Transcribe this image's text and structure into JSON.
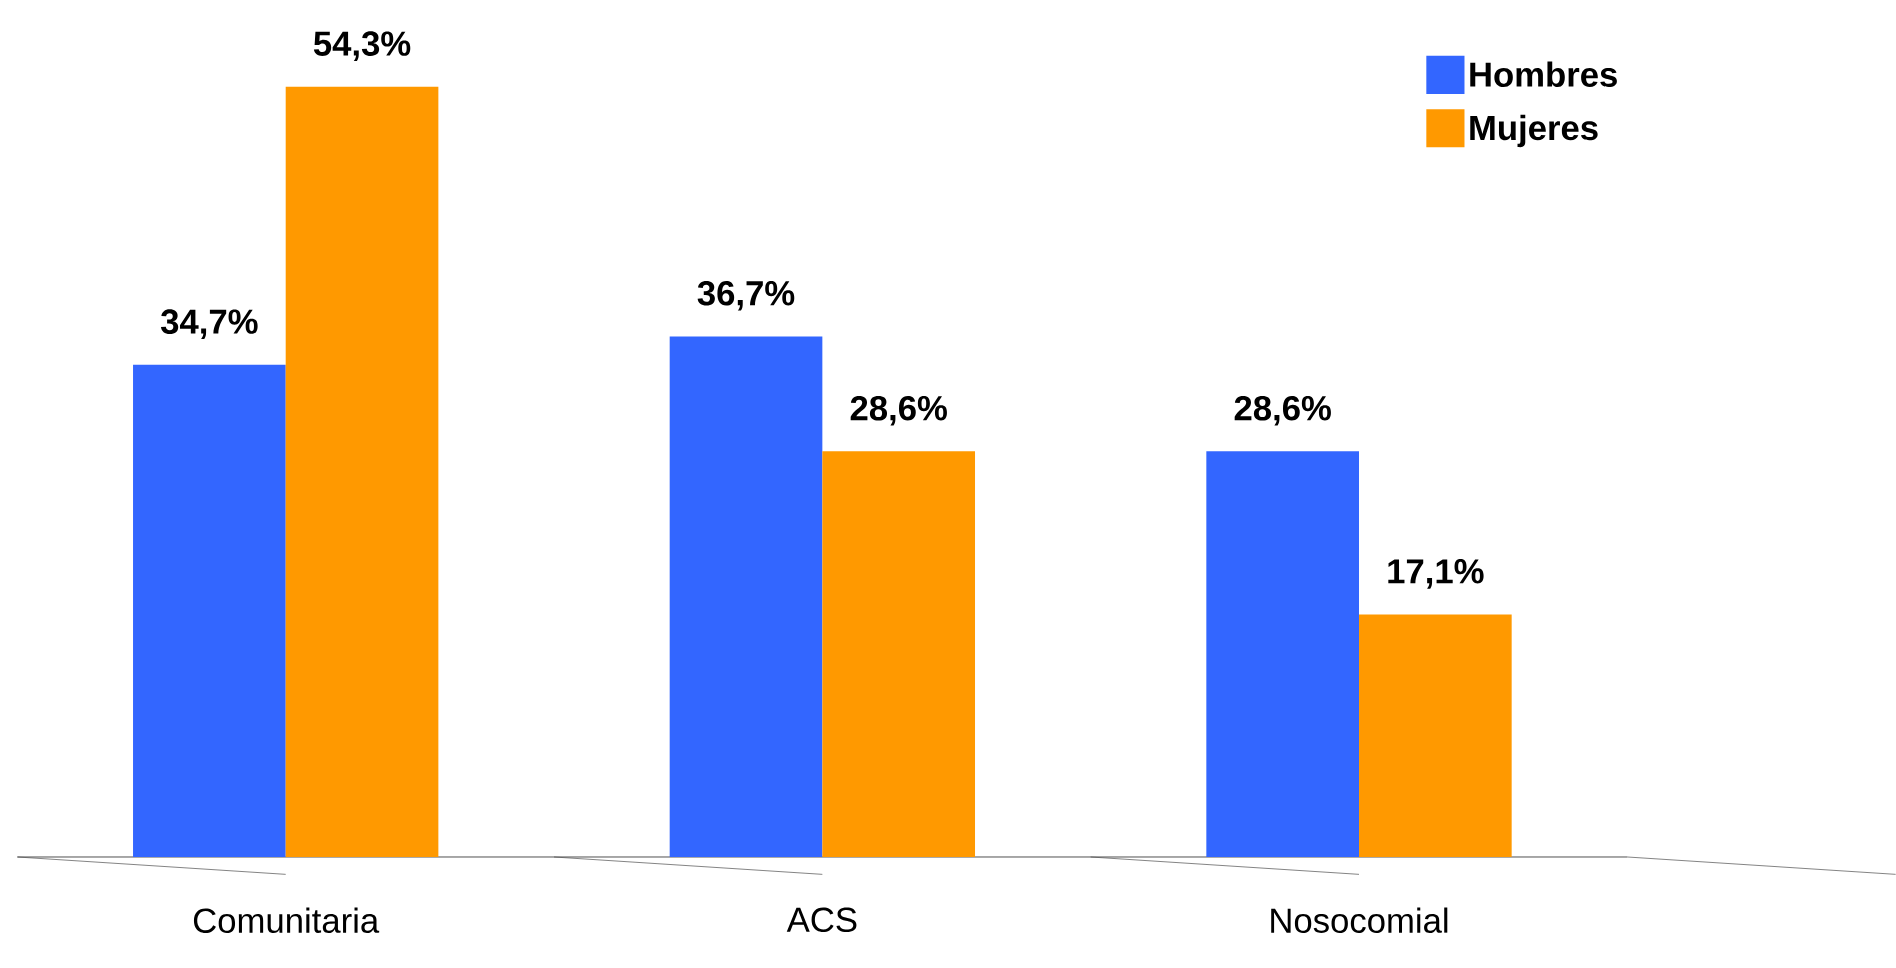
{
  "chart_data": {
    "type": "bar",
    "categories": [
      "Comunitaria",
      "ACS",
      "Nosocomial"
    ],
    "series": [
      {
        "name": "Hombres",
        "color": "#3366ff",
        "values": [
          34.7,
          36.7,
          28.6
        ],
        "value_labels": [
          "34,7%",
          "36,7%",
          "28,6%"
        ]
      },
      {
        "name": "Mujeres",
        "color": "#ff9900",
        "values": [
          54.3,
          28.6,
          17.1
        ],
        "value_labels": [
          "54,3%",
          "28,6%",
          "17,1%"
        ]
      }
    ],
    "legend": "top right"
  }
}
